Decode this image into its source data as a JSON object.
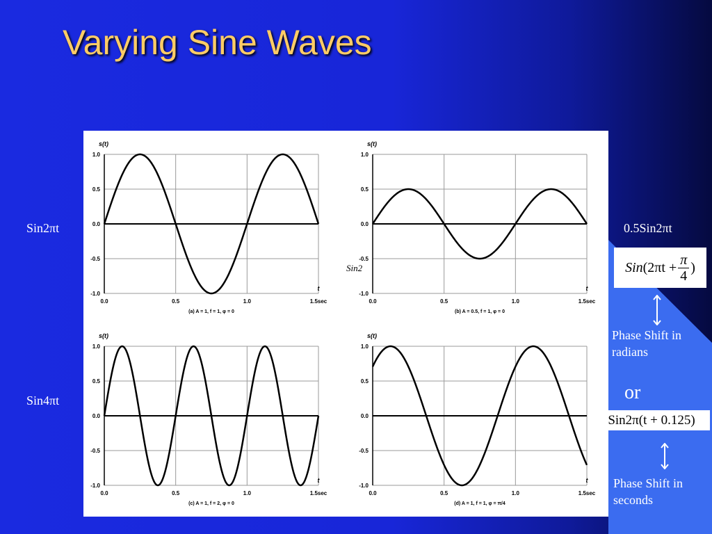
{
  "slide": {
    "title": "Varying Sine Waves"
  },
  "labels": {
    "left_top": "Sin2πt",
    "left_bottom": "Sin4πt",
    "right_top": "0.5Sin2πt",
    "overlay": "Sin2",
    "phase_radians_1": "Phase Shift in",
    "phase_radians_2": "radians",
    "or": "or",
    "phase_seconds_1": "Phase Shift in",
    "phase_seconds_2": "seconds"
  },
  "formulas": {
    "radians": {
      "prefix": "Sin",
      "open": "(2πt + ",
      "num": "π",
      "den": "4",
      "close": ")"
    },
    "seconds": {
      "text": "Sin2π(t + 0.125)"
    }
  },
  "chart_data": [
    {
      "type": "line",
      "ylabel": "s(t)",
      "xlabel": "t",
      "caption": "(a) A = 1, f = 1, φ = 0",
      "A": 1,
      "f": 1,
      "phi": 0,
      "xlim": [
        0,
        1.5
      ],
      "ylim": [
        -1,
        1
      ],
      "xticks": [
        "0.0",
        "0.5",
        "1.0",
        "1.5sec"
      ],
      "yticks": [
        "1.0",
        "0.5",
        "0.0",
        "-0.5",
        "-1.0"
      ]
    },
    {
      "type": "line",
      "ylabel": "s(t)",
      "xlabel": "t",
      "caption": "(b) A = 0.5, f = 1, φ = 0",
      "A": 0.5,
      "f": 1,
      "phi": 0,
      "xlim": [
        0,
        1.5
      ],
      "ylim": [
        -1,
        1
      ],
      "xticks": [
        "0.0",
        "0.5",
        "1.0",
        "1.5sec"
      ],
      "yticks": [
        "1.0",
        "0.5",
        "0.0",
        "-0.5",
        "-1.0"
      ]
    },
    {
      "type": "line",
      "ylabel": "s(t)",
      "xlabel": "t",
      "caption": "(c) A = 1, f = 2, φ = 0",
      "A": 1,
      "f": 2,
      "phi": 0,
      "xlim": [
        0,
        1.5
      ],
      "ylim": [
        -1,
        1
      ],
      "xticks": [
        "0.0",
        "0.5",
        "1.0",
        "1.5sec"
      ],
      "yticks": [
        "1.0",
        "0.5",
        "0.0",
        "-0.5",
        "-1.0"
      ]
    },
    {
      "type": "line",
      "ylabel": "s(t)",
      "xlabel": "t",
      "caption": "(d) A = 1, f = 1, φ = π/4",
      "A": 1,
      "f": 1,
      "phi": 0.785398,
      "xlim": [
        0,
        1.5
      ],
      "ylim": [
        -1,
        1
      ],
      "xticks": [
        "0.0",
        "0.5",
        "1.0",
        "1.5sec"
      ],
      "yticks": [
        "1.0",
        "0.5",
        "0.0",
        "-0.5",
        "-1.0"
      ]
    }
  ]
}
